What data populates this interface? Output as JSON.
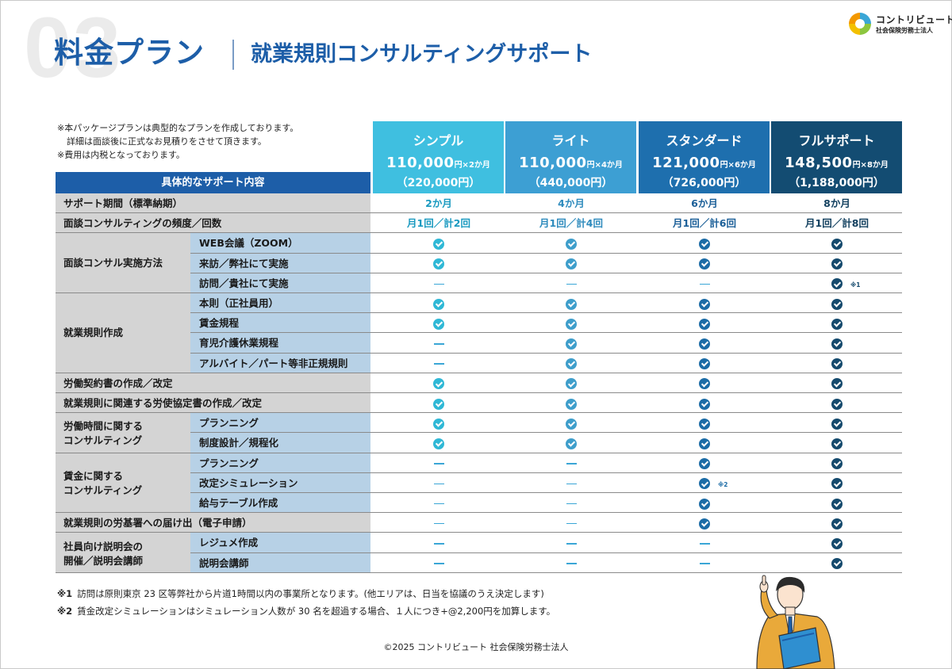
{
  "header": {
    "number": "03",
    "title": "料金プラン",
    "subtitle": "就業規則コンサルティングサポート"
  },
  "logo": {
    "name": "コントリビュート",
    "sub": "社会保険労務士法人"
  },
  "top_notes": [
    "※本パッケージプランは典型的なプランを作成しております。",
    "詳細は面談後に正式なお見積りをさせて頂きます。",
    "※費用は内税となっております。"
  ],
  "support_title": "具体的なサポート内容",
  "plans": [
    {
      "name": "シンプル",
      "price": "110,000",
      "unit": "円×2か月",
      "total": "（220,000円）",
      "color": "#3fbfe0",
      "check_color": "#2fb8d6"
    },
    {
      "name": "ライト",
      "price": "110,000",
      "unit": "円×4か月",
      "total": "（440,000円）",
      "color": "#3d9fd3",
      "check_color": "#3e9ecb"
    },
    {
      "name": "スタンダード",
      "price": "121,000",
      "unit": "円×6か月",
      "total": "（726,000円）",
      "color": "#1e6fae",
      "check_color": "#1c6ca6"
    },
    {
      "name": "フルサポート",
      "price": "148,500",
      "unit": "円×8か月",
      "total": "（1,188,000円）",
      "color": "#134c72",
      "check_color": "#154a6d"
    }
  ],
  "text_color_per_plan": [
    "#1a9ac0",
    "#2e8bbd",
    "#1b5f98",
    "#12405f"
  ],
  "dash_color": "#3aa6d6",
  "rows": {
    "period": {
      "label": "サポート期間（標準納期）",
      "values": [
        "2か月",
        "4か月",
        "6か月",
        "8か月"
      ]
    },
    "frequency": {
      "label": "面談コンサルティングの頻度／回数",
      "values": [
        "月1回／計2回",
        "月1回／計4回",
        "月1回／計6回",
        "月1回／計8回"
      ]
    },
    "method": {
      "label": "面談コンサル実施方法",
      "items": [
        {
          "label": "WEB会議（ZOOM）",
          "marks": [
            "check",
            "check",
            "check",
            "check"
          ]
        },
        {
          "label": "来訪／弊社にて実施",
          "marks": [
            "check",
            "check",
            "check",
            "check"
          ]
        },
        {
          "label": "訪問／貴社にて実施",
          "marks": [
            "dash",
            "dash",
            "dash",
            "check"
          ],
          "note": "※1"
        }
      ]
    },
    "rules": {
      "label": "就業規則作成",
      "items": [
        {
          "label": "本則（正社員用）",
          "marks": [
            "check",
            "check",
            "check",
            "check"
          ]
        },
        {
          "label": "賃金規程",
          "marks": [
            "check",
            "check",
            "check",
            "check"
          ]
        },
        {
          "label": "育児介護休業規程",
          "marks": [
            "dash",
            "check",
            "check",
            "check"
          ]
        },
        {
          "label": "アルバイト／パート等非正規規則",
          "marks": [
            "dash",
            "check",
            "check",
            "check"
          ]
        }
      ]
    },
    "contract": {
      "label": "労働契約書の作成／改定",
      "marks": [
        "check",
        "check",
        "check",
        "check"
      ]
    },
    "agreement": {
      "label": "就業規則に関連する労使協定書の作成／改定",
      "marks": [
        "check",
        "check",
        "check",
        "check"
      ]
    },
    "worktime": {
      "label_lines": [
        "労働時間に関する",
        "コンサルティング"
      ],
      "items": [
        {
          "label": "プランニング",
          "marks": [
            "check",
            "check",
            "check",
            "check"
          ]
        },
        {
          "label": "制度設計／規程化",
          "marks": [
            "check",
            "check",
            "check",
            "check"
          ]
        }
      ]
    },
    "wage": {
      "label_lines": [
        "賃金に関する",
        "コンサルティング"
      ],
      "items": [
        {
          "label": "プランニング",
          "marks": [
            "dash",
            "dash",
            "check",
            "check"
          ]
        },
        {
          "label": "改定シミュレーション",
          "marks": [
            "dash",
            "dash",
            "check",
            "check"
          ],
          "note": "※2"
        },
        {
          "label": "給与テーブル作成",
          "marks": [
            "dash",
            "dash",
            "check",
            "check"
          ]
        }
      ]
    },
    "filing": {
      "label": "就業規則の労基署への届け出（電子申請）",
      "marks": [
        "dash",
        "dash",
        "check",
        "check"
      ]
    },
    "briefing": {
      "label_lines": [
        "社員向け説明会の",
        "開催／説明会講師"
      ],
      "items": [
        {
          "label": "レジュメ作成",
          "marks": [
            "dash",
            "dash",
            "dash",
            "check"
          ]
        },
        {
          "label": "説明会講師",
          "marks": [
            "dash",
            "dash",
            "dash",
            "check"
          ]
        }
      ]
    }
  },
  "footnotes": [
    {
      "mark": "※1",
      "text": "訪問は原則東京 23 区等弊社から片道1時間以内の事業所となります。(他エリアは、日当を協議のうえ決定します)"
    },
    {
      "mark": "※2",
      "text": "賃金改定シミュレーションはシミュレーション人数が 30 名を超過する場合、１人につき+@2,200円を加算します。"
    }
  ],
  "copyright": "©2025 コントリビュート 社会保険労務士法人"
}
